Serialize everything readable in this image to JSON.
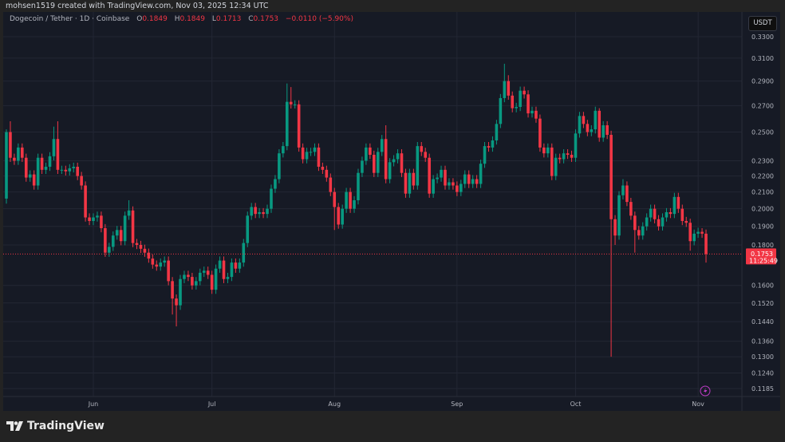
{
  "attribution": "mohsen1519 created with TradingView.com, Nov 03, 2025 12:34 UTC",
  "legend": {
    "symbol": "Dogecoin / Tether · 1D · Coinbase",
    "o_label": "O",
    "o": "0.1849",
    "h_label": "H",
    "h": "0.1849",
    "l_label": "L",
    "l": "0.1713",
    "c_label": "C",
    "c": "0.1753",
    "change": "−0.0110 (−5.90%)"
  },
  "currency_button": "USDT",
  "footer_brand": "TradingView",
  "colors": {
    "up": "#089981",
    "down": "#f23645",
    "background": "#161a25",
    "grid": "#232734",
    "text": "#b2b5be"
  },
  "chart_data": {
    "type": "candlestick",
    "interval": "1D",
    "y_scale": "log",
    "ylim": [
      0.1165,
      0.345
    ],
    "grid": true,
    "y_ticks": [
      "0.3300",
      "0.3100",
      "0.2900",
      "0.2700",
      "0.2500",
      "0.2300",
      "0.2200",
      "0.2100",
      "0.2000",
      "0.1900",
      "0.1800",
      "0.1600",
      "0.1520",
      "0.1440",
      "0.1360",
      "0.1300",
      "0.1240",
      "0.1185"
    ],
    "x_ticks": [
      {
        "label": "Jun",
        "index": 22
      },
      {
        "label": "Jul",
        "index": 52
      },
      {
        "label": "Aug",
        "index": 83
      },
      {
        "label": "Sep",
        "index": 114
      },
      {
        "label": "Oct",
        "index": 144
      },
      {
        "label": "Nov",
        "index": 175
      }
    ],
    "first_open": 0.206,
    "closes": [
      0.25,
      0.232,
      0.23,
      0.239,
      0.232,
      0.219,
      0.221,
      0.214,
      0.232,
      0.224,
      0.226,
      0.233,
      0.245,
      0.224,
      0.224,
      0.223,
      0.225,
      0.226,
      0.22,
      0.214,
      0.195,
      0.193,
      0.195,
      0.196,
      0.189,
      0.176,
      0.179,
      0.185,
      0.188,
      0.182,
      0.196,
      0.199,
      0.181,
      0.18,
      0.178,
      0.176,
      0.173,
      0.17,
      0.169,
      0.171,
      0.172,
      0.162,
      0.154,
      0.151,
      0.163,
      0.165,
      0.164,
      0.16,
      0.162,
      0.166,
      0.167,
      0.165,
      0.158,
      0.168,
      0.172,
      0.163,
      0.164,
      0.171,
      0.168,
      0.171,
      0.181,
      0.196,
      0.201,
      0.197,
      0.198,
      0.197,
      0.2,
      0.212,
      0.218,
      0.235,
      0.24,
      0.273,
      0.271,
      0.271,
      0.239,
      0.231,
      0.236,
      0.236,
      0.239,
      0.226,
      0.224,
      0.219,
      0.21,
      0.201,
      0.191,
      0.2,
      0.21,
      0.2,
      0.205,
      0.222,
      0.23,
      0.239,
      0.234,
      0.222,
      0.236,
      0.245,
      0.218,
      0.229,
      0.231,
      0.235,
      0.222,
      0.209,
      0.222,
      0.214,
      0.24,
      0.236,
      0.232,
      0.209,
      0.218,
      0.219,
      0.224,
      0.214,
      0.216,
      0.214,
      0.21,
      0.215,
      0.221,
      0.215,
      0.218,
      0.215,
      0.228,
      0.24,
      0.239,
      0.244,
      0.256,
      0.276,
      0.29,
      0.278,
      0.268,
      0.269,
      0.282,
      0.279,
      0.264,
      0.266,
      0.26,
      0.239,
      0.235,
      0.239,
      0.22,
      0.232,
      0.231,
      0.235,
      0.234,
      0.232,
      0.249,
      0.262,
      0.256,
      0.25,
      0.252,
      0.266,
      0.246,
      0.255,
      0.248,
      0.194,
      0.185,
      0.208,
      0.214,
      0.204,
      0.196,
      0.188,
      0.185,
      0.19,
      0.195,
      0.2,
      0.194,
      0.19,
      0.195,
      0.198,
      0.197,
      0.207,
      0.2,
      0.193,
      0.192,
      0.182,
      0.186,
      0.187,
      0.186,
      0.1753
    ],
    "notable_highs": {
      "0": 0.252,
      "1": 0.258,
      "12": 0.254,
      "13": 0.258,
      "31": 0.205,
      "71": 0.288,
      "72": 0.285,
      "96": 0.255,
      "126": 0.305,
      "127": 0.295,
      "150": 0.268,
      "156": 0.218,
      "176": 0.189
    },
    "notable_lows": {
      "0": 0.203,
      "42": 0.147,
      "43": 0.142,
      "44": 0.149,
      "83": 0.188,
      "153": 0.13,
      "154": 0.18,
      "159": 0.176,
      "173": 0.177,
      "177": 0.171
    },
    "last_price": {
      "value": "0.1753",
      "countdown": "11:25:49"
    }
  }
}
